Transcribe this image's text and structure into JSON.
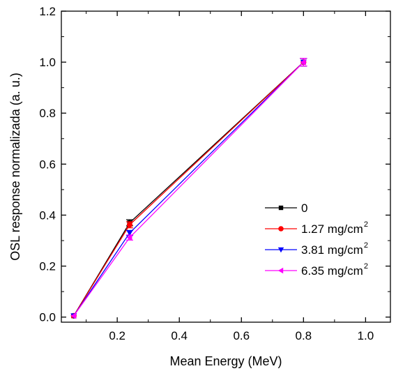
{
  "chart_data": {
    "type": "line",
    "xlabel": "Mean Energy  (MeV)",
    "ylabel": "OSL response normalizada (a. u.)",
    "xlim": [
      0.02,
      1.08
    ],
    "ylim": [
      -0.02,
      1.2
    ],
    "x_ticks": [
      "0.2",
      "0.4",
      "0.6",
      "0.8",
      "1.0"
    ],
    "y_ticks": [
      "0.0",
      "0.2",
      "0.4",
      "0.6",
      "0.8",
      "1.0",
      "1.2"
    ],
    "x_tick_values": [
      0.2,
      0.4,
      0.6,
      0.8,
      1.0
    ],
    "y_tick_values": [
      0.0,
      0.2,
      0.4,
      0.6,
      0.8,
      1.0,
      1.2
    ],
    "x": [
      0.06,
      0.24,
      0.8
    ],
    "grid": false,
    "legend_position": "bottom-right",
    "series": [
      {
        "name": "0",
        "label_main": "0",
        "label_sup": "",
        "color": "#000000",
        "marker": "square",
        "values": [
          0.005,
          0.37,
          1.0
        ],
        "errors": [
          0.003,
          0.012,
          0.015
        ]
      },
      {
        "name": "1.27 mg/cm2",
        "label_main": "1.27 mg/cm",
        "label_sup": "2",
        "color": "#ff0000",
        "marker": "circle",
        "values": [
          0.005,
          0.362,
          1.0
        ],
        "errors": [
          0.003,
          0.012,
          0.015
        ]
      },
      {
        "name": "3.81 mg/cm2",
        "label_main": "3.81 mg/cm",
        "label_sup": "2",
        "color": "#0000ff",
        "marker": "triangle-down",
        "values": [
          0.005,
          0.33,
          1.0
        ],
        "errors": [
          0.003,
          0.01,
          0.015
        ]
      },
      {
        "name": "6.35 mg/cm2",
        "label_main": "6.35 mg/cm",
        "label_sup": "2",
        "color": "#ff00ff",
        "marker": "triangle-left",
        "values": [
          0.005,
          0.312,
          1.0
        ],
        "errors": [
          0.003,
          0.01,
          0.015
        ]
      }
    ]
  }
}
